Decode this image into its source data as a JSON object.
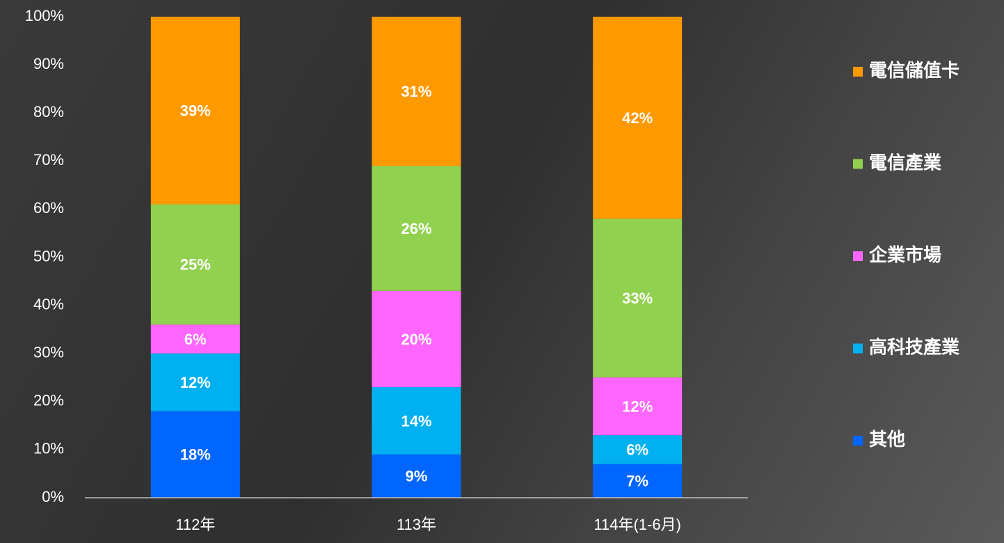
{
  "chart_data": {
    "type": "stacked_bar",
    "categories": [
      "112年",
      "113年",
      "114年(1-6月)"
    ],
    "series": [
      {
        "name": "其他",
        "color": "#0066ff",
        "values": [
          18,
          9,
          7
        ],
        "value_labels": [
          "18%",
          "9%",
          "7%"
        ]
      },
      {
        "name": "高科技產業",
        "color": "#00b0f0",
        "values": [
          12,
          14,
          6
        ],
        "value_labels": [
          "12%",
          "14%",
          "6%"
        ]
      },
      {
        "name": "企業市場",
        "color": "#ff66ff",
        "values": [
          6,
          20,
          12
        ],
        "value_labels": [
          "6%",
          "20%",
          "12%"
        ]
      },
      {
        "name": "電信產業",
        "color": "#92d050",
        "values": [
          25,
          26,
          33
        ],
        "value_labels": [
          "25%",
          "26%",
          "33%"
        ]
      },
      {
        "name": "電信儲值卡",
        "color": "#ff9900",
        "values": [
          39,
          31,
          42
        ],
        "value_labels": [
          "39%",
          "31%",
          "42%"
        ]
      }
    ],
    "ylim": [
      0,
      100
    ],
    "yticks": [
      {
        "value": 0,
        "label": "0%"
      },
      {
        "value": 10,
        "label": "10%"
      },
      {
        "value": 20,
        "label": "20%"
      },
      {
        "value": 30,
        "label": "30%"
      },
      {
        "value": 40,
        "label": "40%"
      },
      {
        "value": 50,
        "label": "50%"
      },
      {
        "value": 60,
        "label": "60%"
      },
      {
        "value": 70,
        "label": "70%"
      },
      {
        "value": 80,
        "label": "80%"
      },
      {
        "value": 90,
        "label": "90%"
      },
      {
        "value": 100,
        "label": "100%"
      }
    ],
    "grid": false,
    "legend": "right"
  }
}
